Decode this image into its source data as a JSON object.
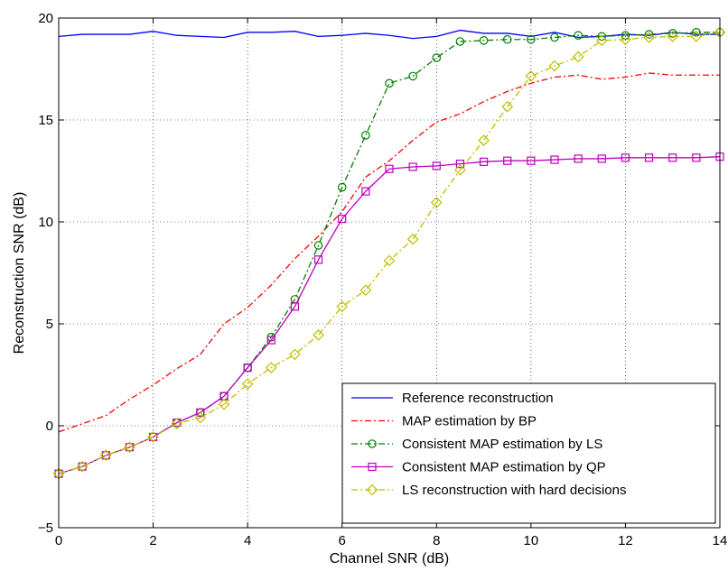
{
  "chart_data": {
    "type": "line",
    "title": "",
    "xlabel": "Channel SNR (dB)",
    "ylabel": "Reconstruction SNR (dB)",
    "xlim": [
      0,
      14
    ],
    "ylim": [
      -5,
      20
    ],
    "xticks": [
      0,
      2,
      4,
      6,
      8,
      10,
      12,
      14
    ],
    "yticks": [
      -5,
      0,
      5,
      10,
      15,
      20
    ],
    "xtick_labels": [
      "0",
      "2",
      "4",
      "6",
      "8",
      "10",
      "12",
      "14"
    ],
    "ytick_labels": [
      "−5",
      "0",
      "5",
      "10",
      "15",
      "20"
    ],
    "grid": true,
    "legend_position": "bottom-right",
    "x": [
      0,
      0.5,
      1,
      1.5,
      2,
      2.5,
      3,
      3.5,
      4,
      4.5,
      5,
      5.5,
      6,
      6.5,
      7,
      7.5,
      8,
      8.5,
      9,
      9.5,
      10,
      10.5,
      11,
      11.5,
      12,
      12.5,
      13,
      13.5,
      14
    ],
    "series": [
      {
        "name": "Reference reconstruction",
        "color": "#0000ff",
        "line": "solid",
        "marker": "none",
        "values": [
          19.1,
          19.2,
          19.2,
          19.2,
          19.35,
          19.15,
          19.1,
          19.05,
          19.3,
          19.3,
          19.35,
          19.1,
          19.15,
          19.25,
          19.15,
          19.0,
          19.1,
          19.4,
          19.25,
          19.25,
          19.1,
          19.3,
          19.05,
          19.1,
          19.2,
          19.15,
          19.3,
          19.2,
          19.2
        ]
      },
      {
        "name": "MAP estimation by BP",
        "color": "#ff0000",
        "line": "dashdot",
        "marker": "none",
        "values": [
          -0.3,
          0.1,
          0.5,
          1.3,
          2.0,
          2.8,
          3.5,
          5.0,
          5.8,
          6.9,
          8.2,
          9.3,
          10.5,
          12.2,
          13.0,
          14.0,
          14.9,
          15.3,
          15.9,
          16.4,
          16.8,
          17.1,
          17.2,
          17.0,
          17.1,
          17.3,
          17.2,
          17.2,
          17.2
        ]
      },
      {
        "name": "Consistent MAP estimation by LS",
        "color": "#008000",
        "line": "dashdot",
        "marker": "circle",
        "values": [
          -2.35,
          -2.0,
          -1.45,
          -1.05,
          -0.55,
          0.15,
          0.65,
          1.45,
          2.85,
          4.35,
          6.2,
          8.85,
          11.7,
          14.25,
          16.8,
          17.15,
          18.05,
          18.85,
          18.9,
          18.95,
          18.95,
          19.05,
          19.15,
          19.1,
          19.15,
          19.2,
          19.25,
          19.3,
          19.3
        ]
      },
      {
        "name": "Consistent MAP estimation by QP",
        "color": "#bf00bf",
        "line": "solid",
        "marker": "square",
        "values": [
          -2.35,
          -2.0,
          -1.45,
          -1.05,
          -0.55,
          0.15,
          0.65,
          1.45,
          2.85,
          4.2,
          5.85,
          8.15,
          10.15,
          11.5,
          12.6,
          12.7,
          12.75,
          12.85,
          12.95,
          13.0,
          13.0,
          13.05,
          13.1,
          13.1,
          13.15,
          13.15,
          13.15,
          13.15,
          13.2
        ]
      },
      {
        "name": "LS reconstruction with hard decisions",
        "color": "#bfbf00",
        "line": "dashdot",
        "marker": "diamond",
        "values": [
          -2.35,
          -2.0,
          -1.45,
          -1.05,
          -0.55,
          0.1,
          0.4,
          1.05,
          2.05,
          2.85,
          3.5,
          4.45,
          5.85,
          6.65,
          8.1,
          9.15,
          10.95,
          12.55,
          14.0,
          15.65,
          17.15,
          17.65,
          18.1,
          18.9,
          18.95,
          19.05,
          19.1,
          19.1,
          19.3
        ]
      }
    ]
  }
}
